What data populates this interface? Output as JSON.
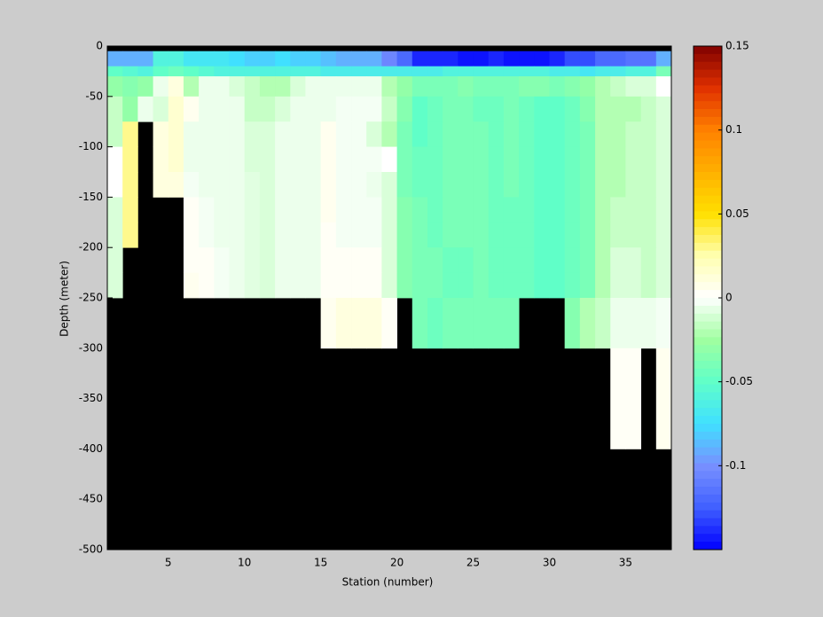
{
  "chart_data": {
    "type": "heatmap",
    "xlabel": "Station (number)",
    "ylabel": "Depth (meter)",
    "x": [
      1,
      2,
      3,
      4,
      5,
      6,
      7,
      8,
      9,
      10,
      11,
      12,
      13,
      14,
      15,
      16,
      17,
      18,
      19,
      20,
      21,
      22,
      23,
      24,
      25,
      26,
      27,
      28,
      29,
      30,
      31,
      32,
      33,
      34,
      35,
      36,
      37,
      38
    ],
    "y": [
      0,
      -5,
      -20,
      -30,
      -50,
      -75,
      -100,
      -125,
      -150,
      -175,
      -200,
      -225,
      -250,
      -300,
      -400,
      -500
    ],
    "xlim": [
      1,
      38
    ],
    "xticks": [
      5,
      10,
      15,
      20,
      25,
      30,
      35
    ],
    "ylim": [
      -500,
      0
    ],
    "yticks": [
      -500,
      -450,
      -400,
      -350,
      -300,
      -250,
      -200,
      -150,
      -100,
      -50,
      0
    ],
    "clim": [
      -0.15,
      0.15
    ],
    "cticks": [
      -0.1,
      -0.05,
      0,
      0.05,
      0.1,
      0.15
    ],
    "colormap": [
      "#0000ff",
      "#4060ff",
      "#7890ff",
      "#40e0ff",
      "#60ffc8",
      "#a0ffa0",
      "#ffffff",
      "#ffffb0",
      "#ffe000",
      "#ffb000",
      "#ff8000",
      "#e03000",
      "#800000"
    ],
    "nan_color": "#000000",
    "values": [
      [
        null,
        null,
        null,
        null,
        null,
        null,
        null,
        null,
        null,
        null,
        null,
        null,
        null,
        null,
        null,
        null,
        null,
        null,
        null,
        null,
        null,
        null,
        null,
        null,
        null,
        null,
        null,
        null,
        null,
        null,
        null,
        null,
        null,
        null,
        null,
        null,
        null
      ],
      [
        -0.09,
        -0.09,
        -0.09,
        -0.06,
        -0.06,
        -0.07,
        -0.07,
        -0.07,
        -0.075,
        -0.08,
        -0.08,
        -0.075,
        -0.08,
        -0.08,
        -0.085,
        -0.09,
        -0.09,
        -0.09,
        -0.105,
        -0.12,
        -0.14,
        -0.14,
        -0.14,
        -0.145,
        -0.145,
        -0.14,
        -0.145,
        -0.145,
        -0.145,
        -0.14,
        -0.13,
        -0.13,
        -0.12,
        -0.12,
        -0.115,
        -0.115,
        -0.09
      ],
      [
        -0.05,
        -0.055,
        -0.06,
        -0.05,
        -0.045,
        -0.05,
        -0.055,
        -0.06,
        -0.06,
        -0.06,
        -0.06,
        -0.06,
        -0.06,
        -0.06,
        -0.065,
        -0.065,
        -0.065,
        -0.065,
        -0.065,
        -0.065,
        -0.065,
        -0.065,
        -0.06,
        -0.06,
        -0.06,
        -0.06,
        -0.06,
        -0.06,
        -0.06,
        -0.065,
        -0.065,
        -0.07,
        -0.065,
        -0.065,
        -0.06,
        -0.06,
        -0.04
      ],
      [
        -0.03,
        -0.035,
        -0.03,
        -0.005,
        0.01,
        -0.02,
        -0.005,
        -0.005,
        -0.01,
        -0.015,
        -0.02,
        -0.02,
        -0.01,
        -0.005,
        -0.005,
        -0.005,
        -0.005,
        -0.005,
        -0.02,
        -0.03,
        -0.04,
        -0.04,
        -0.04,
        -0.035,
        -0.04,
        -0.04,
        -0.04,
        -0.035,
        -0.035,
        -0.04,
        -0.035,
        -0.03,
        -0.02,
        -0.015,
        -0.01,
        -0.01,
        0
      ],
      [
        -0.015,
        -0.03,
        -0.005,
        -0.01,
        0.015,
        0.005,
        -0.005,
        -0.005,
        -0.005,
        -0.015,
        -0.015,
        -0.01,
        -0.005,
        -0.005,
        -0.005,
        -0.003,
        -0.003,
        -0.003,
        -0.015,
        -0.035,
        -0.05,
        -0.045,
        -0.04,
        -0.04,
        -0.045,
        -0.045,
        -0.04,
        -0.045,
        -0.05,
        -0.05,
        -0.045,
        -0.035,
        -0.02,
        -0.02,
        -0.02,
        -0.015,
        -0.01
      ],
      [
        -0.015,
        0.03,
        null,
        0.01,
        0.015,
        -0.005,
        -0.005,
        -0.005,
        -0.005,
        -0.01,
        -0.01,
        -0.005,
        -0.005,
        -0.005,
        0.005,
        -0.003,
        -0.003,
        -0.01,
        -0.02,
        -0.04,
        -0.05,
        -0.045,
        -0.04,
        -0.04,
        -0.04,
        -0.045,
        -0.04,
        -0.045,
        -0.05,
        -0.05,
        -0.045,
        -0.04,
        -0.02,
        -0.02,
        -0.015,
        -0.015,
        -0.01
      ],
      [
        0,
        0.03,
        null,
        0.01,
        0.015,
        -0.005,
        -0.005,
        -0.005,
        -0.005,
        -0.01,
        -0.01,
        -0.005,
        -0.005,
        -0.005,
        0.005,
        -0.003,
        -0.003,
        -0.003,
        0,
        -0.04,
        -0.045,
        -0.045,
        -0.04,
        -0.04,
        -0.04,
        -0.045,
        -0.04,
        -0.045,
        -0.05,
        -0.05,
        -0.045,
        -0.04,
        -0.02,
        -0.02,
        -0.015,
        -0.015,
        -0.01
      ],
      [
        0,
        0.03,
        null,
        0.01,
        0.01,
        -0.003,
        -0.005,
        -0.005,
        -0.005,
        -0.008,
        -0.01,
        -0.005,
        -0.005,
        -0.005,
        0.005,
        -0.003,
        -0.003,
        -0.005,
        -0.01,
        -0.04,
        -0.045,
        -0.045,
        -0.04,
        -0.04,
        -0.04,
        -0.045,
        -0.04,
        -0.045,
        -0.05,
        -0.05,
        -0.045,
        -0.04,
        -0.02,
        -0.02,
        -0.015,
        -0.015,
        -0.01
      ],
      [
        -0.01,
        0.03,
        null,
        null,
        null,
        0.003,
        -0.003,
        -0.005,
        -0.005,
        -0.008,
        -0.01,
        -0.005,
        -0.005,
        -0.005,
        0.005,
        -0.003,
        -0.003,
        -0.003,
        -0.01,
        -0.035,
        -0.04,
        -0.045,
        -0.04,
        -0.04,
        -0.04,
        -0.045,
        -0.045,
        -0.045,
        -0.05,
        -0.05,
        -0.045,
        -0.04,
        -0.02,
        -0.015,
        -0.015,
        -0.015,
        -0.01
      ],
      [
        -0.01,
        0.03,
        null,
        null,
        null,
        0.003,
        -0.003,
        -0.005,
        -0.005,
        -0.008,
        -0.01,
        -0.005,
        -0.005,
        -0.005,
        0.003,
        -0.003,
        -0.003,
        -0.003,
        -0.01,
        -0.035,
        -0.04,
        -0.045,
        -0.04,
        -0.04,
        -0.04,
        -0.045,
        -0.045,
        -0.045,
        -0.05,
        -0.05,
        -0.045,
        -0.04,
        -0.02,
        -0.015,
        -0.015,
        -0.015,
        -0.01
      ],
      [
        -0.01,
        null,
        null,
        null,
        null,
        0.003,
        0.003,
        -0.003,
        -0.005,
        -0.008,
        -0.01,
        -0.005,
        -0.005,
        -0.005,
        0.003,
        0.003,
        0.003,
        0.003,
        -0.01,
        -0.035,
        -0.04,
        -0.04,
        -0.045,
        -0.045,
        -0.04,
        -0.045,
        -0.045,
        -0.045,
        -0.05,
        -0.05,
        -0.045,
        -0.04,
        -0.02,
        -0.01,
        -0.01,
        -0.015,
        -0.01
      ],
      [
        -0.01,
        null,
        null,
        null,
        null,
        0.005,
        0.003,
        -0.003,
        -0.005,
        -0.008,
        -0.01,
        -0.005,
        -0.005,
        -0.005,
        0.003,
        0.003,
        0.003,
        0.003,
        -0.01,
        -0.035,
        -0.04,
        -0.04,
        -0.045,
        -0.045,
        -0.04,
        -0.045,
        -0.045,
        -0.045,
        -0.05,
        -0.05,
        -0.045,
        -0.04,
        -0.02,
        -0.01,
        -0.01,
        -0.015,
        -0.01
      ],
      [
        null,
        null,
        null,
        null,
        null,
        null,
        null,
        null,
        null,
        null,
        null,
        null,
        null,
        null,
        0.005,
        0.01,
        0.01,
        0.01,
        0.003,
        null,
        -0.04,
        -0.045,
        -0.04,
        -0.04,
        -0.04,
        -0.04,
        -0.04,
        null,
        null,
        null,
        -0.035,
        -0.02,
        -0.015,
        -0.005,
        -0.005,
        -0.005,
        -0.003
      ],
      [
        null,
        null,
        null,
        null,
        null,
        null,
        null,
        null,
        null,
        null,
        null,
        null,
        null,
        null,
        null,
        null,
        null,
        null,
        null,
        null,
        null,
        null,
        null,
        null,
        null,
        null,
        null,
        null,
        null,
        null,
        null,
        null,
        null,
        0.003,
        0.003,
        null,
        0.005
      ],
      [
        null,
        null,
        null,
        null,
        null,
        null,
        null,
        null,
        null,
        null,
        null,
        null,
        null,
        null,
        null,
        null,
        null,
        null,
        null,
        null,
        null,
        null,
        null,
        null,
        null,
        null,
        null,
        null,
        null,
        null,
        null,
        null,
        null,
        null,
        null,
        null,
        null
      ]
    ]
  }
}
